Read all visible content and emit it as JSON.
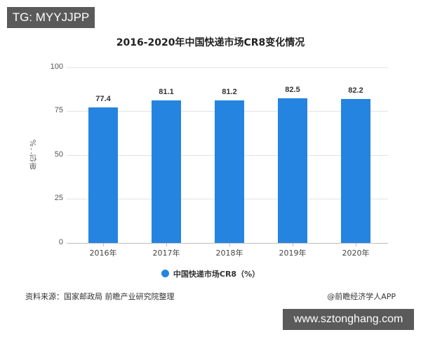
{
  "overlay": {
    "tag": "TG: MYYJJPP",
    "url": "www.sztonghang.com"
  },
  "chart_data": {
    "type": "bar",
    "title": "2016-2020年中国快递市场CR8变化情况",
    "categories": [
      "2016年",
      "2017年",
      "2018年",
      "2019年",
      "2020年"
    ],
    "values": [
      77.4,
      81.1,
      81.2,
      82.5,
      82.2
    ],
    "value_labels": [
      "77.4",
      "81.1",
      "81.2",
      "82.5",
      "82.2"
    ],
    "xlabel": "",
    "ylabel": "单位：%",
    "ylim": [
      0,
      100
    ],
    "yticks": [
      "0",
      "25",
      "50",
      "75",
      "100"
    ],
    "grid": true,
    "legend": {
      "position": "bottom",
      "entries": [
        "中国快递市场CR8（%）"
      ]
    },
    "bar_color": "#2484e0"
  },
  "footer": {
    "source": "资料来源：国家邮政局 前瞻产业研究院整理",
    "credit": "@前瞻经济学人APP"
  }
}
